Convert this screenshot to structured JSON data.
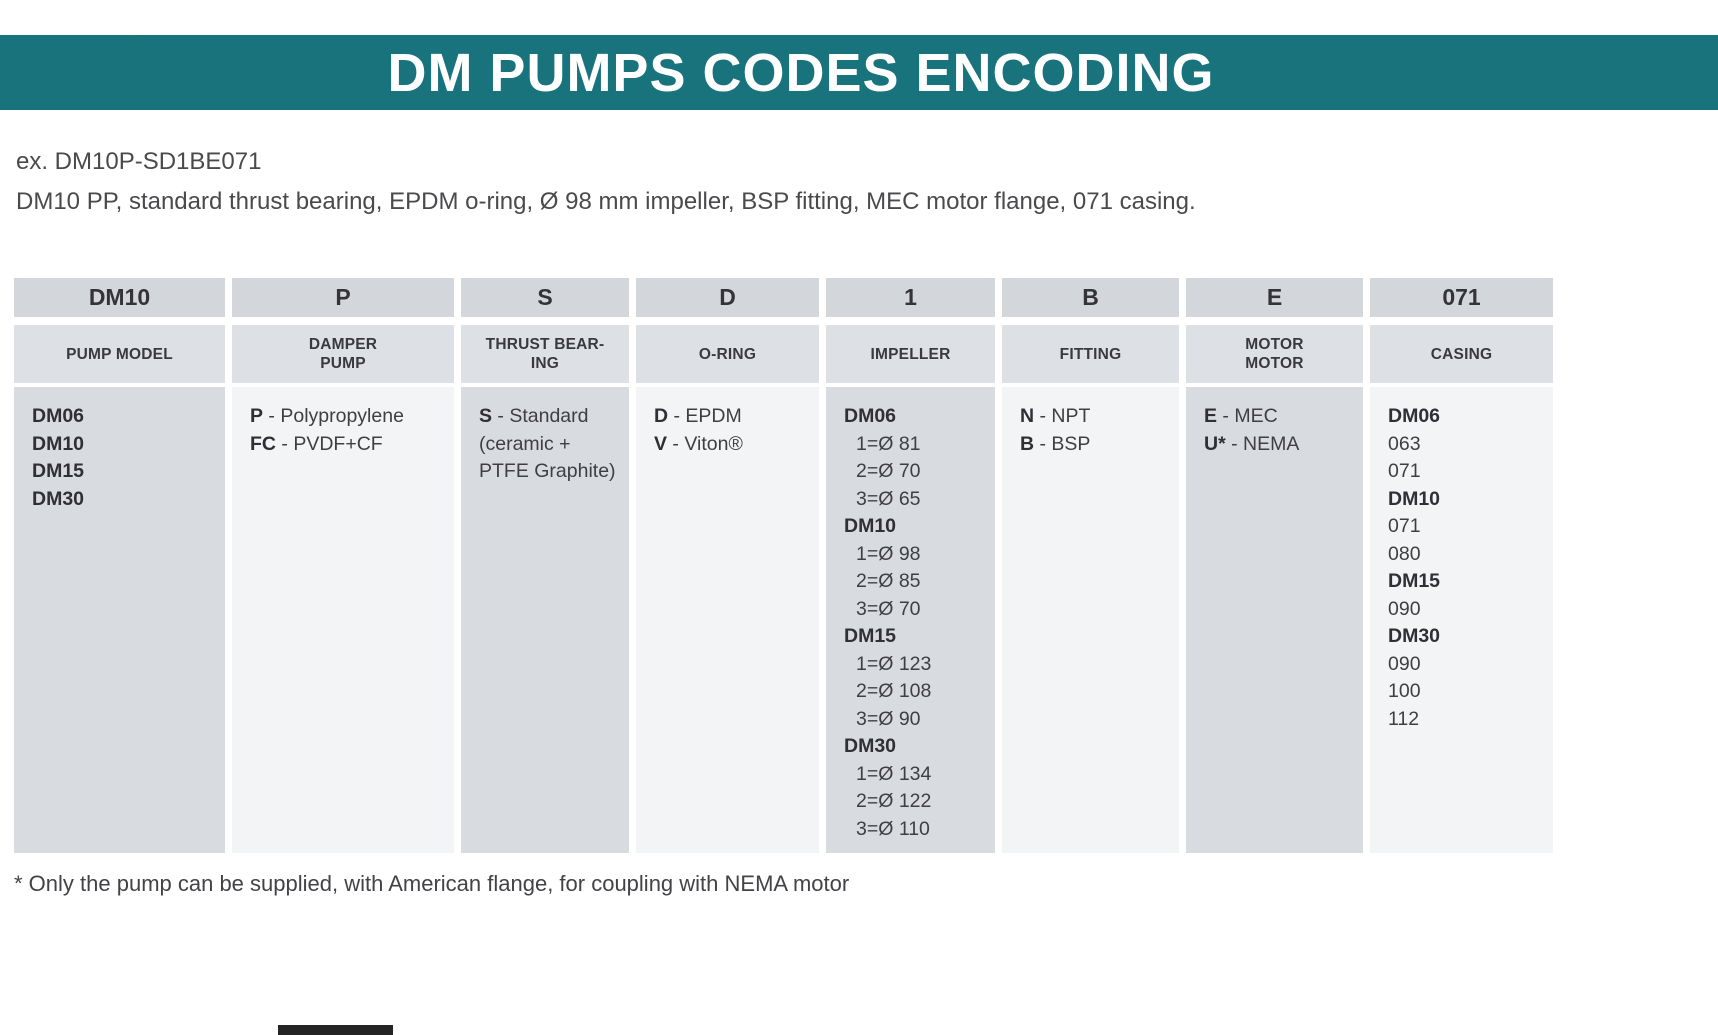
{
  "title": "DM PUMPS CODES ENCODING",
  "example_line1": "ex. DM10P-SD1BE071",
  "example_line2": "DM10 PP, standard thrust bearing, EPDM o-ring, Ø 98 mm impeller, BSP fitting, MEC motor flange, 071 casing.",
  "footnote": "* Only the pump can be supplied, with American flange, for coupling with NEMA motor",
  "colors": {
    "teal": "#19737d",
    "code_cell": "#d3d6db",
    "header_cell": "#dde0e4",
    "body_gray": "#d8dbe0",
    "body_light": "#f3f4f6",
    "text": "#3f3f42"
  },
  "table": {
    "columns": [
      {
        "id": "pump-model",
        "code": "DM10",
        "header": "PUMP MODEL",
        "lines": [
          {
            "b": "DM06"
          },
          {
            "b": "DM10"
          },
          {
            "b": "DM15"
          },
          {
            "b": "DM30"
          }
        ]
      },
      {
        "id": "damper-pump",
        "code": "P",
        "header": "DAMPER\nPUMP",
        "lines": [
          {
            "b": "P",
            "t": " - Polypropylene"
          },
          {
            "b": "FC",
            "t": " - PVDF+CF"
          }
        ]
      },
      {
        "id": "thrust-bearing",
        "code": "S",
        "header": "THRUST BEAR-\nING",
        "lines": [
          {
            "b": "S",
            "t": " - Standard"
          },
          {
            "t": "(ceramic +"
          },
          {
            "t": "PTFE Graphite)"
          }
        ]
      },
      {
        "id": "o-ring",
        "code": "D",
        "header": "O-RING",
        "lines": [
          {
            "b": "D",
            "t": " - EPDM"
          },
          {
            "b": "V",
            "t": " - Viton®"
          }
        ]
      },
      {
        "id": "impeller",
        "code": "1",
        "header": "IMPELLER",
        "lines": [
          {
            "b": "DM06"
          },
          {
            "t": "1=Ø 81",
            "indent": true
          },
          {
            "t": "2=Ø 70",
            "indent": true
          },
          {
            "t": "3=Ø 65",
            "indent": true
          },
          {
            "b": "DM10"
          },
          {
            "t": "1=Ø 98",
            "indent": true
          },
          {
            "t": "2=Ø 85",
            "indent": true
          },
          {
            "t": "3=Ø 70",
            "indent": true
          },
          {
            "b": "DM15"
          },
          {
            "t": "1=Ø 123",
            "indent": true
          },
          {
            "t": "2=Ø 108",
            "indent": true
          },
          {
            "t": "3=Ø 90",
            "indent": true
          },
          {
            "b": "DM30"
          },
          {
            "t": "1=Ø 134",
            "indent": true
          },
          {
            "t": "2=Ø 122",
            "indent": true
          },
          {
            "t": "3=Ø 110",
            "indent": true
          }
        ]
      },
      {
        "id": "fitting",
        "code": "B",
        "header": "FITTING",
        "lines": [
          {
            "b": "N",
            "t": " - NPT"
          },
          {
            "b": "B",
            "t": " - BSP"
          }
        ]
      },
      {
        "id": "motor-flange",
        "code": "E",
        "header": "MOTOR\nMOTOR",
        "lines": [
          {
            "b": "E",
            "t": " - MEC"
          },
          {
            "b": "U*",
            "t": " - NEMA"
          }
        ]
      },
      {
        "id": "casing",
        "code": "071",
        "header": "CASING",
        "lines": [
          {
            "b": "DM06"
          },
          {
            "t": "063"
          },
          {
            "t": "071"
          },
          {
            "b": "DM10"
          },
          {
            "t": "071"
          },
          {
            "t": "080"
          },
          {
            "b": "DM15"
          },
          {
            "t": "090"
          },
          {
            "b": "DM30"
          },
          {
            "t": "090"
          },
          {
            "t": "100"
          },
          {
            "t": "112"
          }
        ]
      }
    ]
  }
}
